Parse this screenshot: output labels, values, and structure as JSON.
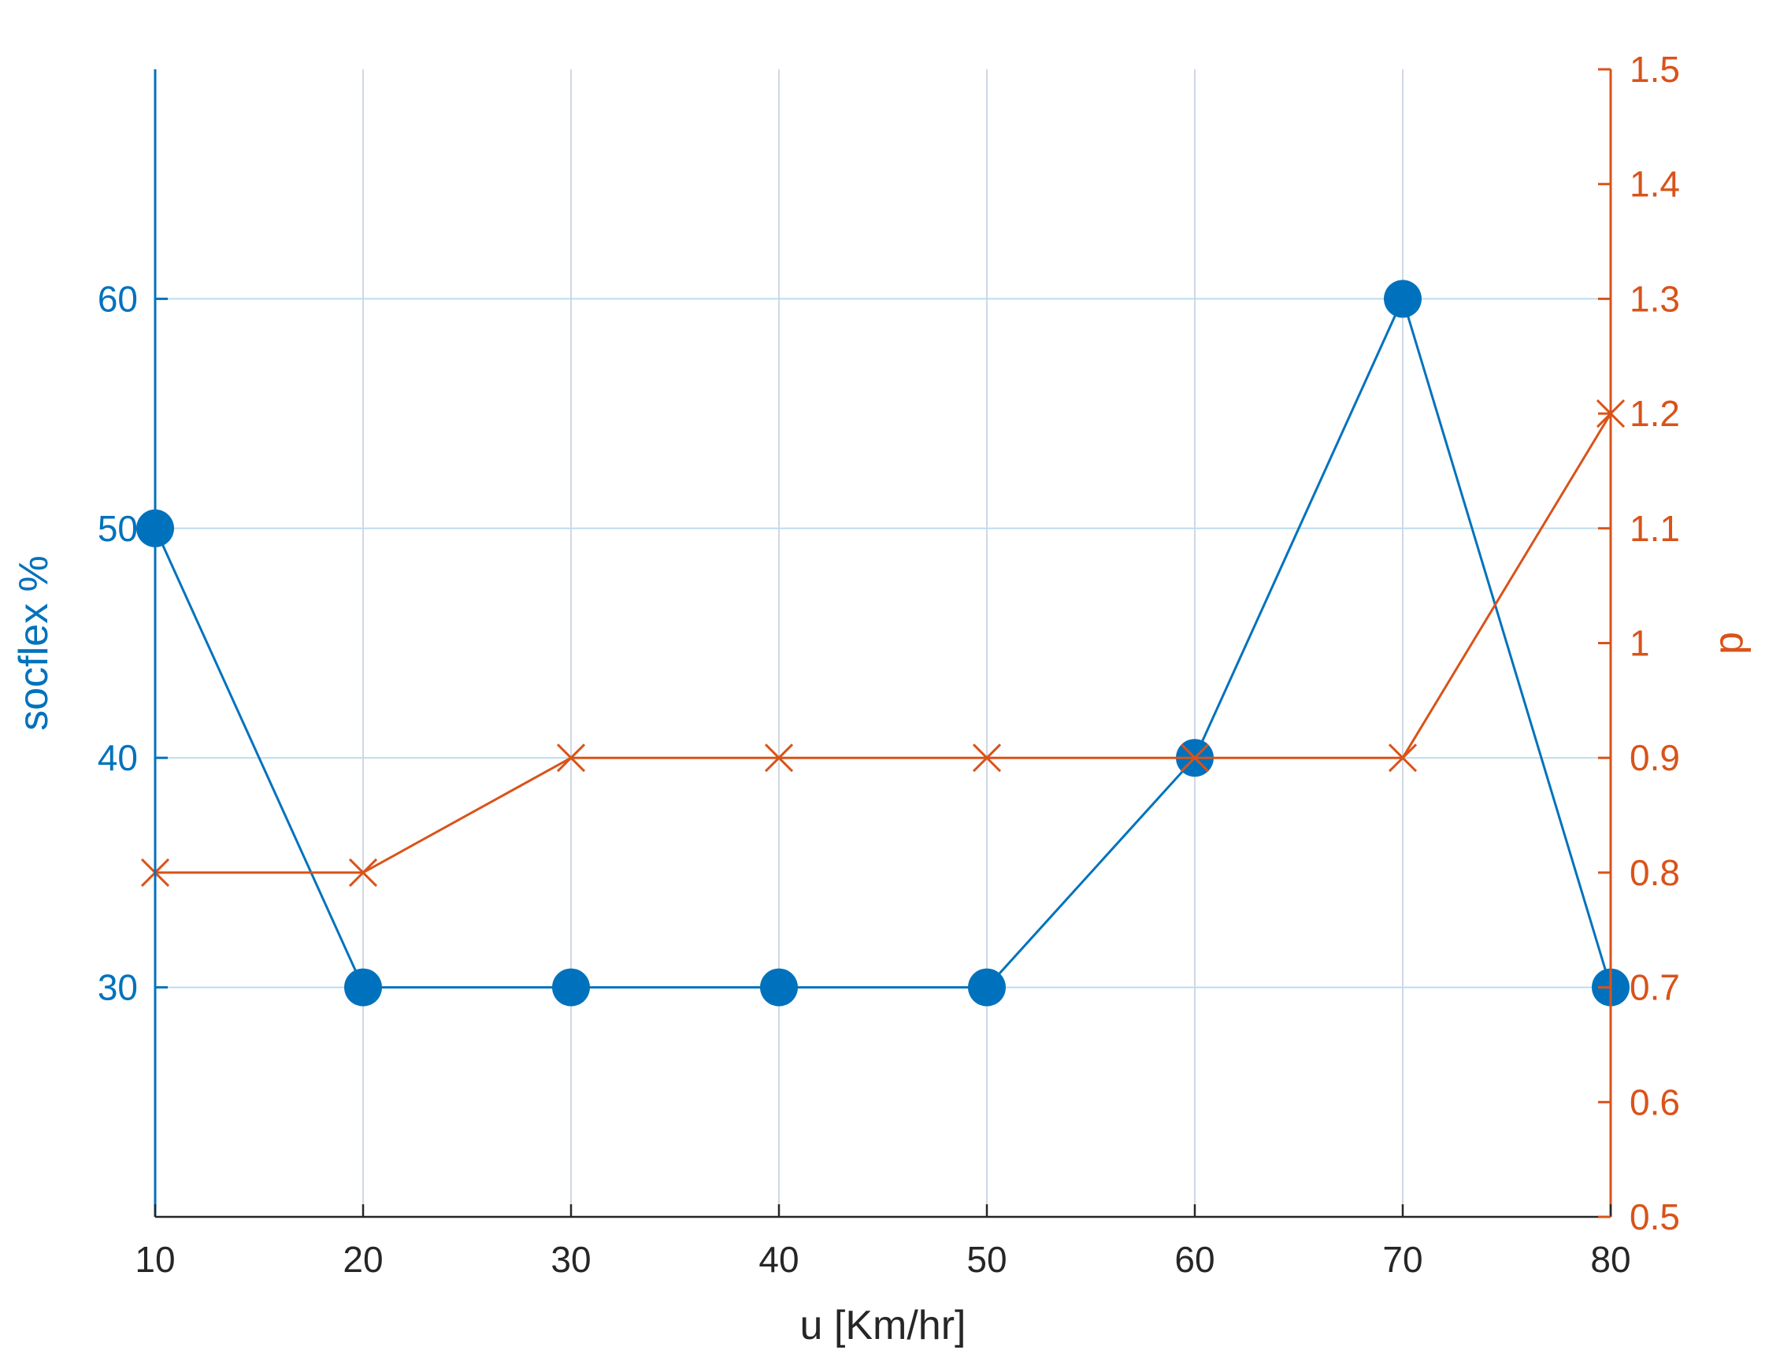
{
  "colors": {
    "left": "#0072BD",
    "right": "#D95319",
    "grid": "#cfd8e3",
    "gridH": "#bcdcf0",
    "tickText": "#262626"
  },
  "chart_data": {
    "type": "line",
    "x": [
      10,
      20,
      30,
      40,
      50,
      60,
      70,
      80
    ],
    "xlabel": "u [Km/hr]",
    "xlim": [
      10,
      80
    ],
    "xticks": [
      "10",
      "20",
      "30",
      "40",
      "50",
      "60",
      "70",
      "80"
    ],
    "ylabel_left": "socflex %",
    "ylim_left": [
      20,
      70
    ],
    "yticks_left": [
      "30",
      "40",
      "50",
      "60"
    ],
    "ylabel_right": "p",
    "ylim_right": [
      0.5,
      1.5
    ],
    "yticks_right": [
      "0.5",
      "0.6",
      "0.7",
      "0.8",
      "0.9",
      "1",
      "1.1",
      "1.2",
      "1.3",
      "1.4",
      "1.5"
    ],
    "grid": true,
    "series": [
      {
        "axis": "left",
        "marker": "filled-circle",
        "values": [
          50,
          30,
          30,
          30,
          30,
          40,
          60,
          30
        ]
      },
      {
        "axis": "right",
        "marker": "x",
        "values": [
          0.8,
          0.8,
          0.9,
          0.9,
          0.9,
          0.9,
          0.9,
          1.2
        ]
      }
    ]
  }
}
